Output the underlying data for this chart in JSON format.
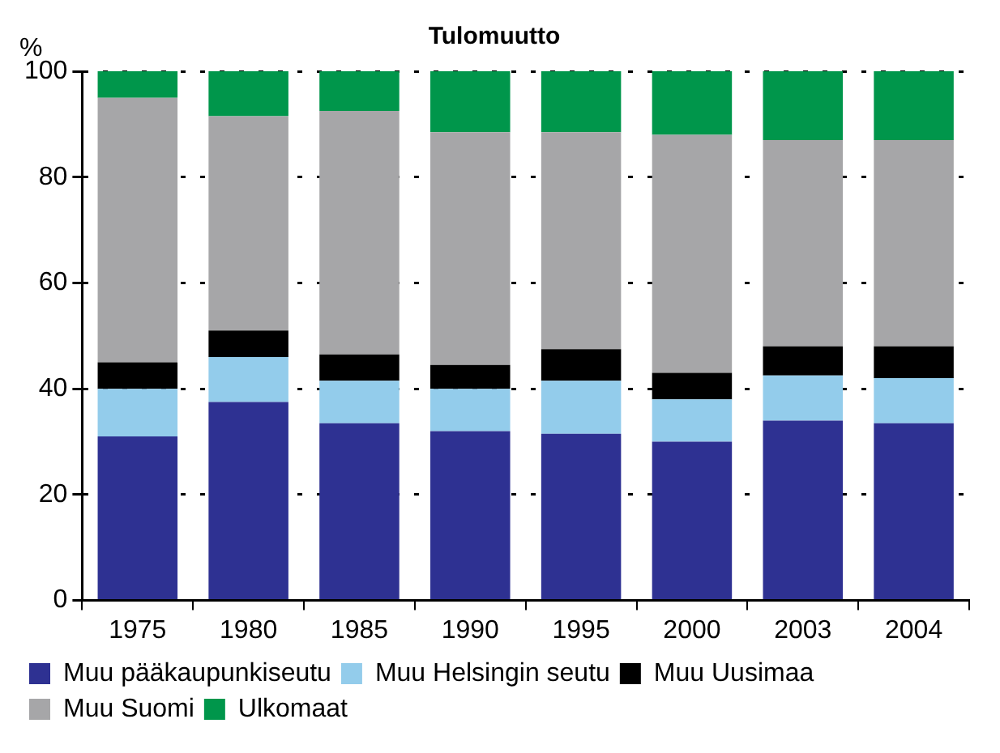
{
  "chart_data": {
    "type": "bar",
    "title": "Tulomuutto",
    "ylabel": "%",
    "categories": [
      "1975",
      "1980",
      "1985",
      "1990",
      "1995",
      "2000",
      "2003",
      "2004"
    ],
    "stacked": true,
    "series": [
      {
        "name": "Muu pääkaupunkiseutu",
        "color": "#2e3192",
        "values": [
          31,
          37.5,
          33.5,
          32,
          31.5,
          30,
          34,
          33.5
        ]
      },
      {
        "name": "Muu Helsingin seutu",
        "color": "#93cceb",
        "values": [
          9,
          8.5,
          8,
          8,
          10,
          8,
          8.5,
          8.5
        ]
      },
      {
        "name": "Muu Uusimaa",
        "color": "#000000",
        "values": [
          5,
          5,
          5,
          4.5,
          6,
          5,
          5.5,
          6
        ]
      },
      {
        "name": "Muu Suomi",
        "color": "#a6a6a8",
        "values": [
          50,
          40.5,
          46,
          44,
          41,
          45,
          39,
          39
        ]
      },
      {
        "name": "Ulkomaat",
        "color": "#00964b",
        "values": [
          5,
          8.5,
          7.5,
          11.5,
          11.5,
          12,
          13,
          13
        ]
      }
    ],
    "ylim": [
      0,
      100
    ],
    "yticks": [
      0,
      20,
      40,
      60,
      80,
      100
    ],
    "grid": "y",
    "line_style": "dashed",
    "legend": "bottom"
  }
}
